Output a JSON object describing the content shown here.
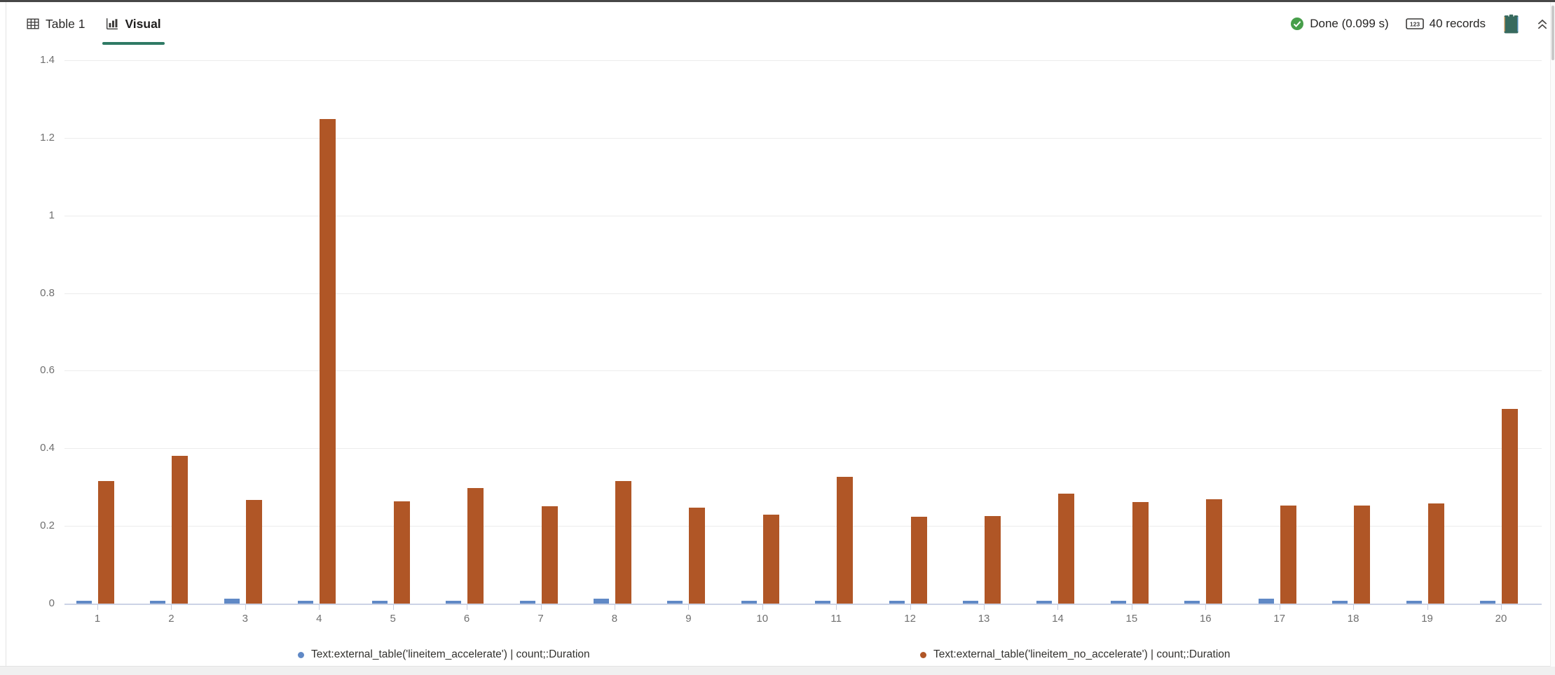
{
  "tabs": [
    {
      "label": "Table 1",
      "icon": "table-icon",
      "active": false
    },
    {
      "label": "Visual",
      "icon": "bar-chart-icon",
      "active": true
    }
  ],
  "status": {
    "done_label": "Done (0.099 s)",
    "records_label": "40 records",
    "records_icon_text": "123",
    "icons": [
      "check-circle-icon",
      "number-badge-icon",
      "clipboard-icon",
      "collapse-chevrons-icon"
    ]
  },
  "colors": {
    "active_tab_underline": "#2f7a64",
    "done_check_green": "#479e4a",
    "clipboard_teal": "#376a5e",
    "series_blue": "#6089c6",
    "series_orange": "#b05626",
    "axis_line": "#ccd3e6",
    "gridline": "#ececec",
    "axis_text": "#6f6f6f"
  },
  "chart_data": {
    "type": "bar",
    "title": "",
    "xlabel": "",
    "ylabel": "",
    "ylim": [
      0,
      1.4
    ],
    "grid": true,
    "legend_position": "bottom",
    "categories": [
      "1",
      "2",
      "3",
      "4",
      "5",
      "6",
      "7",
      "8",
      "9",
      "10",
      "11",
      "12",
      "13",
      "14",
      "15",
      "16",
      "17",
      "18",
      "19",
      "20"
    ],
    "yticks": [
      0,
      0.2,
      0.4,
      0.6,
      0.8,
      1,
      1.2,
      1.4
    ],
    "ytick_labels": [
      "0",
      "0.2",
      "0.4",
      "0.6",
      "0.8",
      "1",
      "1.2",
      "1.4"
    ],
    "series": [
      {
        "name": "Text:external_table('lineitem_accelerate') | count;:Duration",
        "color": "#6089c6",
        "values": [
          0.008,
          0.008,
          0.012,
          0.008,
          0.008,
          0.008,
          0.008,
          0.012,
          0.008,
          0.008,
          0.008,
          0.008,
          0.008,
          0.008,
          0.008,
          0.008,
          0.013,
          0.008,
          0.008,
          0.008
        ]
      },
      {
        "name": "Text:external_table('lineitem_no_accelerate') | count;:Duration",
        "color": "#b05626",
        "values": [
          0.315,
          0.38,
          0.267,
          1.248,
          0.264,
          0.298,
          0.25,
          0.315,
          0.247,
          0.229,
          0.327,
          0.223,
          0.226,
          0.283,
          0.261,
          0.268,
          0.253,
          0.253,
          0.258,
          0.502
        ]
      }
    ]
  }
}
